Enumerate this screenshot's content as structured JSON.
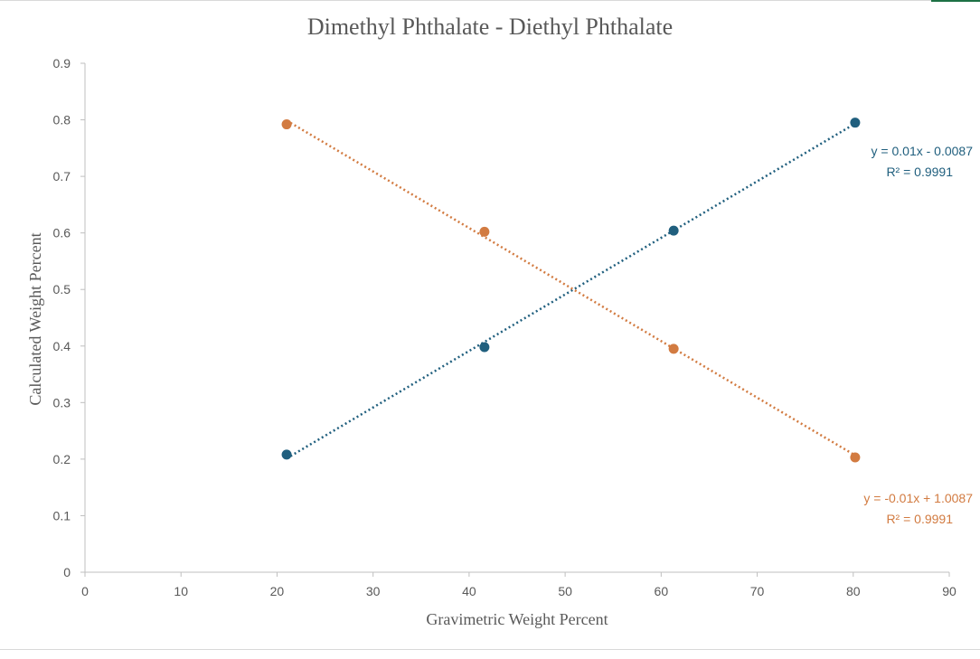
{
  "chart_data": {
    "type": "scatter",
    "title": "Dimethyl Phthalate - Diethyl Phthalate",
    "xlabel": "Gravimetric Weight Percent",
    "ylabel": "Calculated Weight Percent",
    "xlim": [
      0,
      90
    ],
    "ylim": [
      0,
      0.9
    ],
    "x_ticks": [
      "0",
      "10",
      "20",
      "30",
      "40",
      "50",
      "60",
      "70",
      "80",
      "90"
    ],
    "y_ticks": [
      "0",
      "0.1",
      "0.2",
      "0.3",
      "0.4",
      "0.5",
      "0.6",
      "0.7",
      "0.8",
      "0.9"
    ],
    "grid": false,
    "legend": "none",
    "series": [
      {
        "color": "#205f7e",
        "x": [
          21,
          41.6,
          61.3,
          80.2
        ],
        "y": [
          0.208,
          0.398,
          0.604,
          0.795
        ],
        "trendline": {
          "slope": 0.01,
          "intercept": -0.0087,
          "equation": "y = 0.01x - 0.0087",
          "r_squared": "R² = 0.9991"
        }
      },
      {
        "color": "#d27b41",
        "x": [
          21,
          41.6,
          61.3,
          80.2
        ],
        "y": [
          0.792,
          0.602,
          0.395,
          0.203
        ],
        "trendline": {
          "slope": -0.01,
          "intercept": 1.0087,
          "equation": "y = -0.01x + 1.0087",
          "r_squared": "R² = 0.9991"
        }
      }
    ]
  }
}
